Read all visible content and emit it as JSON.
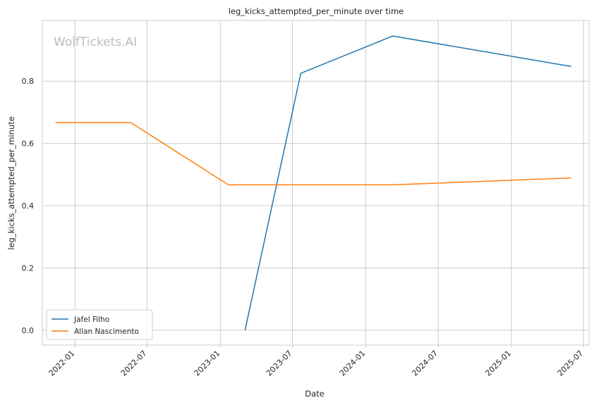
{
  "chart_data": {
    "type": "line",
    "title": "leg_kicks_attempted_per_minute over time",
    "xlabel": "Date",
    "ylabel": "leg_kicks_attempted_per_minute",
    "watermark": "WolfTickets.AI",
    "x_ticks": [
      "2022-01",
      "2022-07",
      "2023-01",
      "2023-07",
      "2024-01",
      "2024-07",
      "2025-01",
      "2025-07"
    ],
    "y_ticks": [
      "0.0",
      "0.2",
      "0.4",
      "0.6",
      "0.8"
    ],
    "xlim": [
      "2021-10-11",
      "2025-07-15"
    ],
    "ylim": [
      -0.048,
      0.995
    ],
    "grid": true,
    "legend_position": "lower-left",
    "series": [
      {
        "name": "Jafel Filho",
        "color": "#1f77b4",
        "x": [
          "2023-03-04",
          "2023-07-22",
          "2024-03-09",
          "2025-05-31"
        ],
        "y": [
          0.0,
          0.825,
          0.945,
          0.847
        ]
      },
      {
        "name": "Allan Nascimento",
        "color": "#ff7f0e",
        "x": [
          "2021-11-13",
          "2022-05-21",
          "2023-01-21",
          "2023-07-01",
          "2024-03-09",
          "2025-05-31"
        ],
        "y": [
          0.667,
          0.667,
          0.467,
          0.467,
          0.467,
          0.489
        ]
      }
    ]
  }
}
